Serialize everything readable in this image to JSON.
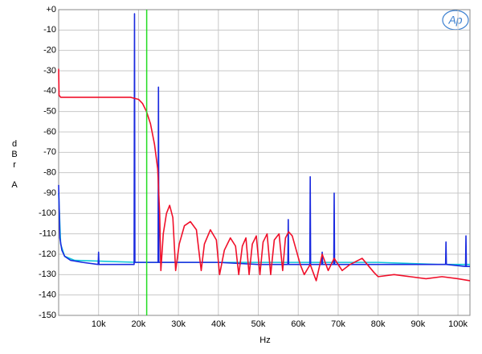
{
  "chart_data": {
    "type": "line",
    "xlabel": "Hz",
    "ylabel": "dBr",
    "yunit": "A",
    "logo": "Ap",
    "xlim": [
      0,
      103000
    ],
    "ylim": [
      -150,
      0
    ],
    "xticks": [
      {
        "value": 10000,
        "label": "10k"
      },
      {
        "value": 20000,
        "label": "20k"
      },
      {
        "value": 30000,
        "label": "30k"
      },
      {
        "value": 40000,
        "label": "40k"
      },
      {
        "value": 50000,
        "label": "50k"
      },
      {
        "value": 60000,
        "label": "60k"
      },
      {
        "value": 70000,
        "label": "70k"
      },
      {
        "value": 80000,
        "label": "80k"
      },
      {
        "value": 90000,
        "label": "90k"
      },
      {
        "value": 100000,
        "label": "100k"
      }
    ],
    "yticks": [
      {
        "value": 0,
        "label": "+0"
      },
      -10,
      -20,
      -30,
      -40,
      -50,
      -60,
      -70,
      -80,
      -90,
      -100,
      -110,
      -120,
      -130,
      -140,
      -150
    ],
    "grid": true,
    "marker": {
      "x": 22050,
      "color": "#22dd22"
    },
    "series": [
      {
        "color": "#10c8d8",
        "x": [
          0,
          500,
          1500,
          4000,
          20000,
          40000,
          60000,
          80000,
          95000,
          103000
        ],
        "values": [
          -90,
          -115,
          -121,
          -123,
          -124,
          -124,
          -124,
          -124,
          -125,
          -125
        ]
      },
      {
        "color": "#1a2adf",
        "x": [
          0,
          300,
          800,
          1500,
          3000,
          6000,
          9900,
          10000,
          10100,
          15000,
          18900,
          19000,
          19100,
          22000,
          24900,
          25000,
          25100,
          30000,
          40000,
          50000,
          57400,
          57500,
          57600,
          62900,
          63000,
          63100,
          65900,
          66000,
          66100,
          68900,
          69000,
          69100,
          80000,
          90000,
          96900,
          97000,
          97100,
          101900,
          102000,
          102100,
          103000
        ],
        "values": [
          -86,
          -112,
          -118,
          -121,
          -123,
          -124,
          -125,
          -119,
          -125,
          -125,
          -125,
          -2,
          -124,
          -124,
          -124,
          -38,
          -124,
          -124,
          -124,
          -125,
          -125,
          -103,
          -125,
          -125,
          -82,
          -125,
          -125,
          -119,
          -125,
          -125,
          -90,
          -125,
          -125,
          -125,
          -125,
          -114,
          -125,
          -126,
          -111,
          -126,
          -126
        ]
      },
      {
        "color": "#f0102a",
        "x": [
          0,
          100,
          500,
          2000,
          5000,
          10000,
          15000,
          18000,
          20000,
          21000,
          22000,
          23000,
          24000,
          24800,
          25300,
          25600,
          26200,
          27000,
          27800,
          28600,
          29300,
          30200,
          31500,
          33000,
          34500,
          35700,
          36500,
          38000,
          39500,
          40300,
          41500,
          43000,
          44300,
          45100,
          46000,
          46900,
          47700,
          48500,
          49500,
          50400,
          51200,
          52200,
          53100,
          54000,
          55200,
          56100,
          56800,
          57600,
          58500,
          59500,
          60500,
          61500,
          63000,
          64500,
          66000,
          67500,
          69000,
          71000,
          73000,
          76000,
          79000,
          80000,
          84000,
          88000,
          92000,
          96000,
          100000,
          103000
        ],
        "values": [
          -29,
          -42,
          -43,
          -43,
          -43,
          -43,
          -43,
          -43,
          -44,
          -46,
          -50,
          -56,
          -66,
          -78,
          -100,
          -128,
          -110,
          -100,
          -96,
          -102,
          -128,
          -115,
          -106,
          -104,
          -108,
          -128,
          -115,
          -108,
          -113,
          -130,
          -118,
          -112,
          -116,
          -130,
          -116,
          -112,
          -130,
          -115,
          -111,
          -130,
          -114,
          -110,
          -130,
          -113,
          -110,
          -128,
          -112,
          -109,
          -111,
          -118,
          -125,
          -130,
          -125,
          -133,
          -120,
          -128,
          -122,
          -128,
          -125,
          -122,
          -129,
          -131,
          -130,
          -131,
          -132,
          -131,
          -132,
          -133
        ]
      }
    ]
  }
}
